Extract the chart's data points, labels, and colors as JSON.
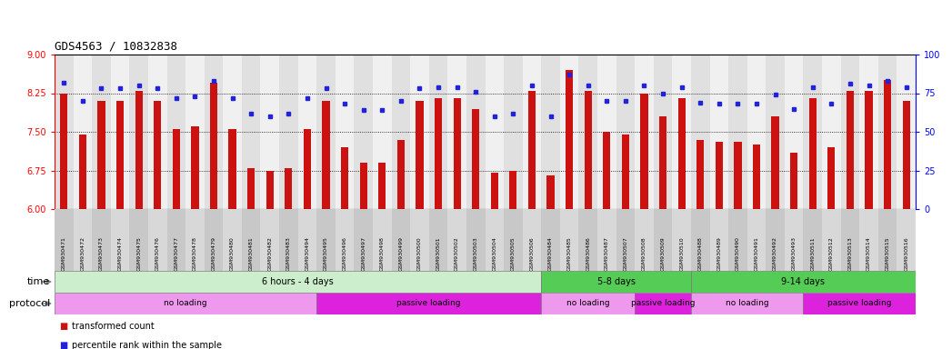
{
  "title": "GDS4563 / 10832838",
  "labels": [
    "GSM930471",
    "GSM930472",
    "GSM930473",
    "GSM930474",
    "GSM930475",
    "GSM930476",
    "GSM930477",
    "GSM930478",
    "GSM930479",
    "GSM930480",
    "GSM930481",
    "GSM930482",
    "GSM930483",
    "GSM930494",
    "GSM930495",
    "GSM930496",
    "GSM930497",
    "GSM930498",
    "GSM930499",
    "GSM930500",
    "GSM930501",
    "GSM930502",
    "GSM930503",
    "GSM930504",
    "GSM930505",
    "GSM930506",
    "GSM930484",
    "GSM930485",
    "GSM930486",
    "GSM930487",
    "GSM930507",
    "GSM930508",
    "GSM930509",
    "GSM930510",
    "GSM930488",
    "GSM930489",
    "GSM930490",
    "GSM930491",
    "GSM930492",
    "GSM930493",
    "GSM930511",
    "GSM930512",
    "GSM930513",
    "GSM930514",
    "GSM930515",
    "GSM930516"
  ],
  "bar_values": [
    8.25,
    7.45,
    8.1,
    8.1,
    8.3,
    8.1,
    7.55,
    7.6,
    8.45,
    7.55,
    6.8,
    6.75,
    6.8,
    7.55,
    8.1,
    7.2,
    6.9,
    6.9,
    7.35,
    8.1,
    8.15,
    8.15,
    7.95,
    6.7,
    6.75,
    8.3,
    6.65,
    8.7,
    8.3,
    7.5,
    7.45,
    8.25,
    7.8,
    8.15,
    7.35,
    7.3,
    7.3,
    7.25,
    7.8,
    7.1,
    8.15,
    7.2,
    8.3,
    8.3,
    8.5,
    8.1
  ],
  "dot_values": [
    82,
    70,
    78,
    78,
    80,
    78,
    72,
    73,
    83,
    72,
    62,
    60,
    62,
    72,
    78,
    68,
    64,
    64,
    70,
    78,
    79,
    79,
    76,
    60,
    62,
    80,
    60,
    87,
    80,
    70,
    70,
    80,
    75,
    79,
    69,
    68,
    68,
    68,
    74,
    65,
    79,
    68,
    81,
    80,
    83,
    79
  ],
  "ylim_left": [
    6,
    9
  ],
  "ylim_right": [
    0,
    100
  ],
  "yticks_left": [
    6,
    6.75,
    7.5,
    8.25,
    9
  ],
  "yticks_right": [
    0,
    25,
    50,
    75,
    100
  ],
  "bar_color": "#cc1111",
  "dot_color": "#2222dd",
  "time_groups": [
    {
      "label": "6 hours - 4 days",
      "start": 0,
      "end": 26,
      "color": "#cceecc"
    },
    {
      "label": "5-8 days",
      "start": 26,
      "end": 34,
      "color": "#55cc55"
    },
    {
      "label": "9-14 days",
      "start": 34,
      "end": 46,
      "color": "#55cc55"
    }
  ],
  "protocol_groups": [
    {
      "label": "no loading",
      "start": 0,
      "end": 14,
      "color": "#ee99ee"
    },
    {
      "label": "passive loading",
      "start": 14,
      "end": 26,
      "color": "#dd22dd"
    },
    {
      "label": "no loading",
      "start": 26,
      "end": 31,
      "color": "#ee99ee"
    },
    {
      "label": "passive loading",
      "start": 31,
      "end": 34,
      "color": "#dd22dd"
    },
    {
      "label": "no loading",
      "start": 34,
      "end": 40,
      "color": "#ee99ee"
    },
    {
      "label": "passive loading",
      "start": 40,
      "end": 46,
      "color": "#dd22dd"
    }
  ],
  "legend_items": [
    {
      "label": "transformed count",
      "color": "#cc1111"
    },
    {
      "label": "percentile rank within the sample",
      "color": "#2222dd"
    }
  ]
}
